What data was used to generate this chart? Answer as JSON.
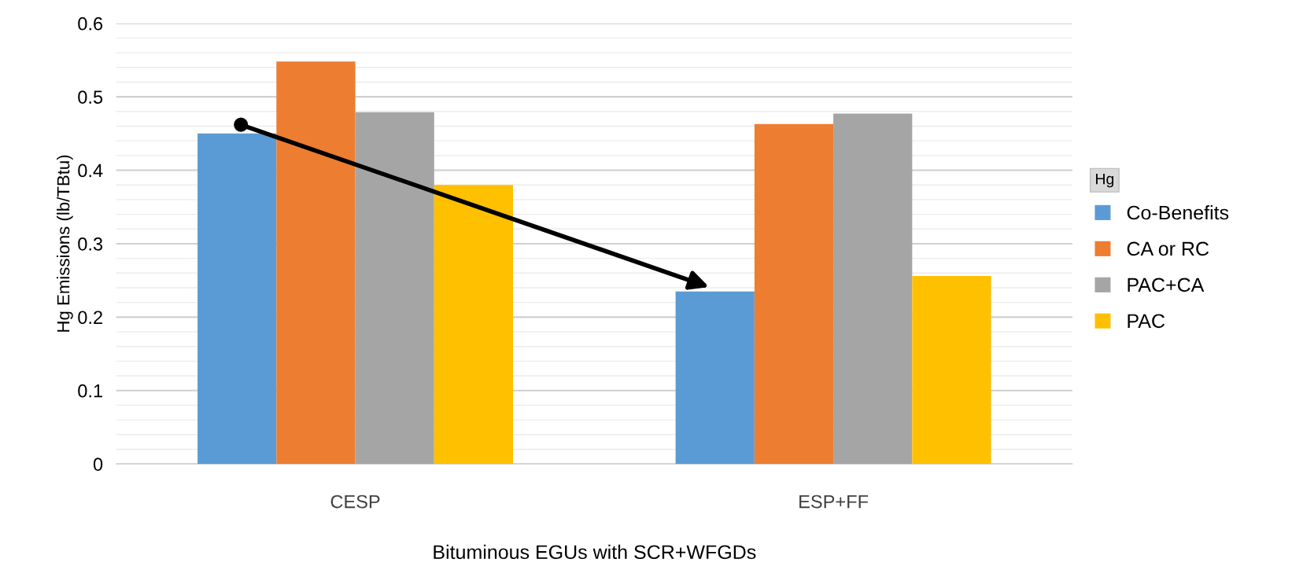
{
  "chart_data": {
    "type": "bar",
    "xlabel": "Bituminous EGUs with SCR+WFGDs",
    "ylabel": "Hg Emissions (lb/TBtu)",
    "categories": [
      "CESP",
      "ESP+FF"
    ],
    "series": [
      {
        "name": "Co-Benefits",
        "color": "#5b9bd5",
        "values": [
          0.45,
          0.235
        ]
      },
      {
        "name": "CA or RC",
        "color": "#ed7d31",
        "values": [
          0.548,
          0.463
        ]
      },
      {
        "name": "PAC+CA",
        "color": "#a5a5a5",
        "values": [
          0.479,
          0.477
        ]
      },
      {
        "name": "PAC",
        "color": "#ffc000",
        "values": [
          0.38,
          0.256
        ]
      }
    ],
    "ylim": [
      0,
      0.6
    ],
    "yticks": [
      0,
      0.1,
      0.2,
      0.3,
      0.4,
      0.5,
      0.6
    ],
    "grid": "y",
    "legend": "right",
    "legend_title": "Hg"
  }
}
